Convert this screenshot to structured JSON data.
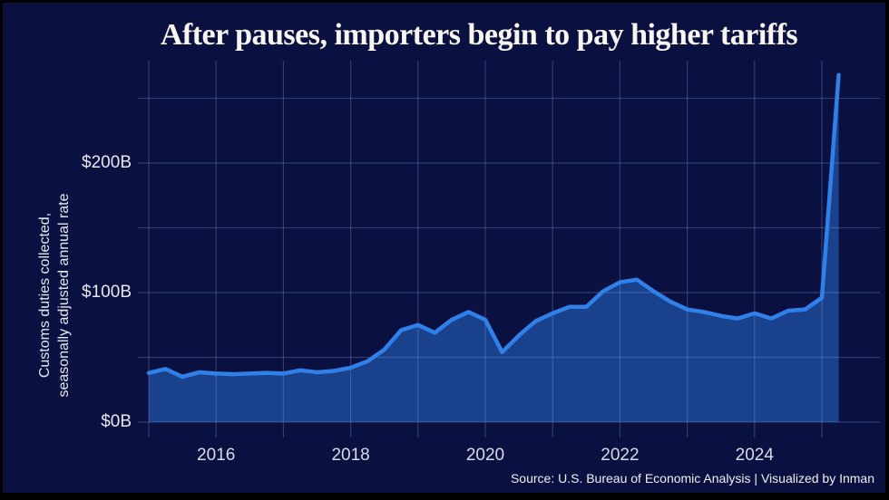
{
  "chart_data": {
    "type": "area",
    "title": "After pauses, importers begin to pay higher tariffs",
    "ylabel_line1": "Customs duties collected,",
    "ylabel_line2": "seasonally adjusted annual rate",
    "source": "Source: U.S. Bureau of Economic Analysis | Visualized by Inman",
    "series_name": "Customs duties collected, seasonally adjusted annual rate ($B)",
    "x_unit": "year (quarterly data points, decimal years)",
    "x": [
      2015.0,
      2015.25,
      2015.5,
      2015.75,
      2016.0,
      2016.25,
      2016.5,
      2016.75,
      2017.0,
      2017.25,
      2017.5,
      2017.75,
      2018.0,
      2018.25,
      2018.5,
      2018.75,
      2019.0,
      2019.25,
      2019.5,
      2019.75,
      2020.0,
      2020.25,
      2020.5,
      2020.75,
      2021.0,
      2021.25,
      2021.5,
      2021.75,
      2022.0,
      2022.25,
      2022.5,
      2022.75,
      2023.0,
      2023.25,
      2023.5,
      2023.75,
      2024.0,
      2024.25,
      2024.5,
      2024.75,
      2025.0,
      2025.25
    ],
    "values": [
      38,
      41,
      35,
      38.5,
      37.5,
      37,
      37.5,
      38,
      37.5,
      40,
      38.5,
      39.5,
      42,
      47,
      56,
      71,
      75,
      69,
      79,
      85,
      79,
      54,
      67,
      78,
      84,
      89,
      89,
      101,
      108,
      110,
      101,
      93,
      87,
      85,
      82,
      80,
      84,
      80,
      86,
      87,
      96,
      268
    ],
    "xlim": [
      2015,
      2025.25
    ],
    "ylim": [
      0,
      280
    ],
    "grid": true,
    "legend": "none",
    "y_ticks": [
      {
        "value": 0,
        "label": "$0B"
      },
      {
        "value": 100,
        "label": "$100B"
      },
      {
        "value": 200,
        "label": "$200B"
      }
    ],
    "y_gridlines": [
      0,
      50,
      100,
      150,
      200,
      250
    ],
    "x_gridline_years": [
      2015,
      2016,
      2017,
      2018,
      2019,
      2020,
      2021,
      2022,
      2023,
      2024,
      2025
    ],
    "x_tick_labels": [
      {
        "year": 2016,
        "label": "2016"
      },
      {
        "year": 2018,
        "label": "2018"
      },
      {
        "year": 2020,
        "label": "2020"
      },
      {
        "year": 2022,
        "label": "2022"
      },
      {
        "year": 2024,
        "label": "2024"
      }
    ],
    "colors": {
      "background": "#0a1040",
      "frame_border": "#000000",
      "line": "#2f80e8",
      "area_fill": "rgba(46,126,232,0.46)",
      "gridline": "rgba(130,165,230,0.30)",
      "title_text": "#f8f6f0",
      "axis_text": "#e6e8f2",
      "source_text": "#eef0f6"
    }
  }
}
